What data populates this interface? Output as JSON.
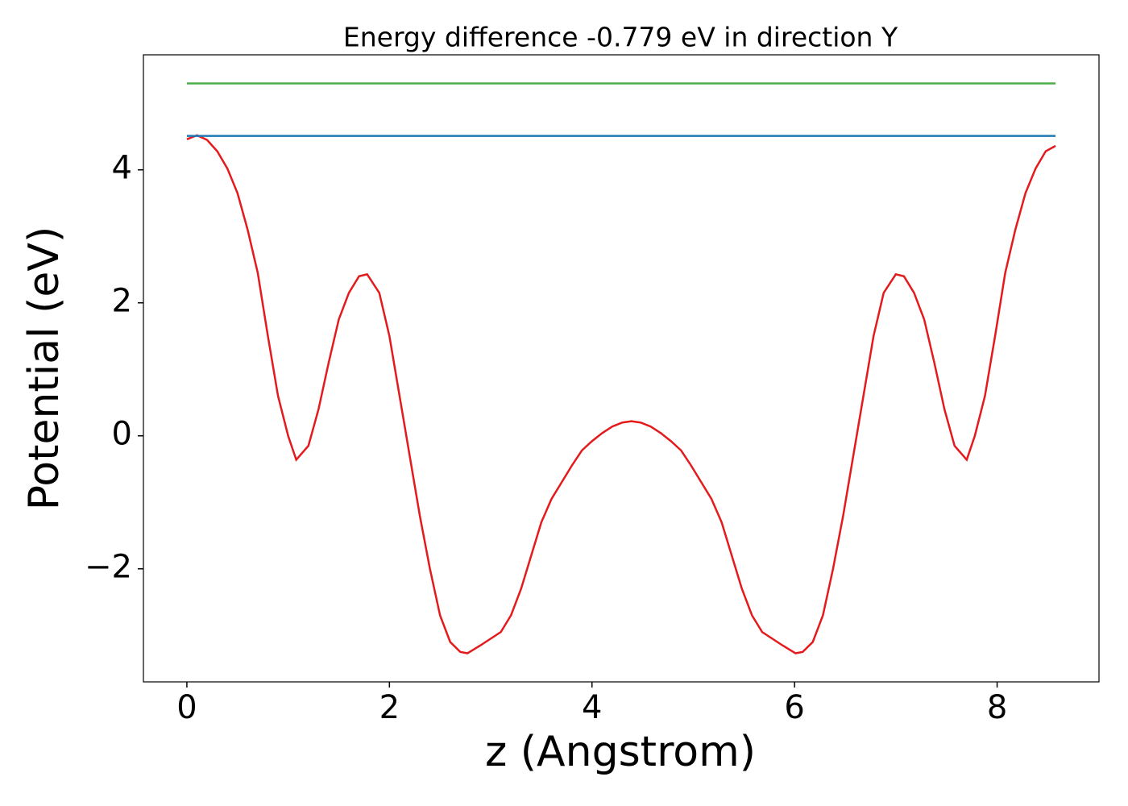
{
  "chart_data": {
    "type": "line",
    "title": "Energy difference -0.779 eV in direction Y",
    "xlabel": "z (Angstrom)",
    "ylabel": "Potential (eV)",
    "xlim": [
      -0.429,
      9.006
    ],
    "ylim": [
      -3.7,
      5.73
    ],
    "xticks": [
      0,
      2,
      4,
      6,
      8
    ],
    "yticks": [
      {
        "value": -2,
        "label": "−2"
      },
      0,
      2,
      4
    ],
    "series": [
      {
        "color": "#e41a1c",
        "x": [
          0.0,
          0.1,
          0.2,
          0.3,
          0.4,
          0.5,
          0.6,
          0.7,
          0.8,
          0.9,
          1.0,
          1.08,
          1.2,
          1.3,
          1.4,
          1.5,
          1.6,
          1.7,
          1.78,
          1.9,
          2.0,
          2.1,
          2.2,
          2.3,
          2.4,
          2.5,
          2.6,
          2.7,
          2.77,
          2.9,
          3.0,
          3.1,
          3.2,
          3.3,
          3.4,
          3.5,
          3.6,
          3.7,
          3.8,
          3.9,
          4.0,
          4.1,
          4.2,
          4.3,
          4.39,
          4.48,
          4.58,
          4.68,
          4.78,
          4.88,
          4.98,
          5.08,
          5.18,
          5.28,
          5.38,
          5.48,
          5.58,
          5.68,
          5.78,
          5.88,
          6.01,
          6.08,
          6.18,
          6.28,
          6.38,
          6.48,
          6.58,
          6.68,
          6.78,
          6.88,
          7.0,
          7.08,
          7.18,
          7.28,
          7.38,
          7.48,
          7.58,
          7.7,
          7.78,
          7.88,
          7.98,
          8.08,
          8.18,
          8.28,
          8.38,
          8.48,
          8.577
        ],
        "values": [
          4.46,
          4.52,
          4.45,
          4.28,
          4.02,
          3.65,
          3.1,
          2.45,
          1.5,
          0.6,
          0.0,
          -0.36,
          -0.15,
          0.4,
          1.1,
          1.75,
          2.15,
          2.4,
          2.43,
          2.15,
          1.5,
          0.6,
          -0.3,
          -1.2,
          -2.0,
          -2.7,
          -3.1,
          -3.25,
          -3.27,
          -3.15,
          -3.05,
          -2.95,
          -2.7,
          -2.3,
          -1.8,
          -1.3,
          -0.95,
          -0.7,
          -0.45,
          -0.22,
          -0.08,
          0.04,
          0.14,
          0.2,
          0.22,
          0.2,
          0.14,
          0.04,
          -0.08,
          -0.22,
          -0.45,
          -0.7,
          -0.95,
          -1.3,
          -1.8,
          -2.3,
          -2.7,
          -2.95,
          -3.05,
          -3.15,
          -3.27,
          -3.25,
          -3.1,
          -2.7,
          -2.0,
          -1.2,
          -0.3,
          0.6,
          1.5,
          2.15,
          2.43,
          2.4,
          2.15,
          1.75,
          1.1,
          0.4,
          -0.15,
          -0.36,
          0.0,
          0.6,
          1.5,
          2.45,
          3.1,
          3.65,
          4.02,
          4.28,
          4.36
        ]
      },
      {
        "color": "#1f77b4",
        "x": [
          0,
          8.577
        ],
        "values": [
          4.51,
          4.51
        ]
      },
      {
        "color": "#4daf4a",
        "x": [
          0,
          8.577
        ],
        "values": [
          5.3,
          5.3
        ]
      }
    ]
  }
}
